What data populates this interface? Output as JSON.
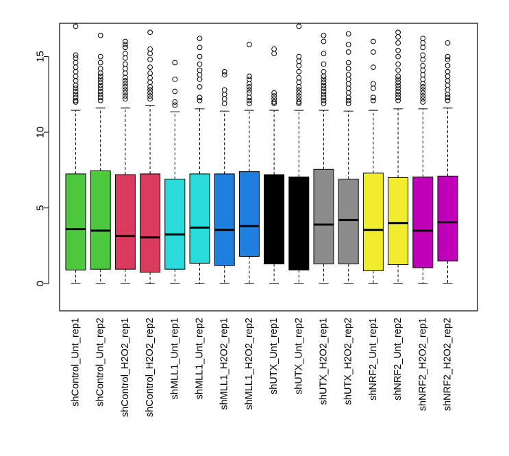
{
  "chart_data": {
    "type": "boxplot",
    "title": "",
    "xlabel": "",
    "ylabel": "",
    "ylim": [
      -1.8,
      17.2
    ],
    "yticks": [
      0,
      5,
      10,
      15
    ],
    "ytick_labels": [
      "0",
      "5",
      "10",
      "15"
    ],
    "grid": false,
    "legend": "none",
    "categories": [
      "shControl_Unt_rep1",
      "shControl_Unt_rep2",
      "shControl_H2O2_rep1",
      "shControl_H2O2_rep2",
      "shMLL1_Unt_rep1",
      "shMLL1_Unt_rep2",
      "shMLL1_H2O2_rep1",
      "shMLL1_H2O2_rep2",
      "shUTX_Unt_rep1",
      "shUTX_Unt_rep2",
      "shUTX_H2O2_rep1",
      "shUTX_H2O2_rep2",
      "shNRF2_Unt_rep1",
      "shNRF2_Unt_rep2",
      "shNRF2_H2O2_rep1",
      "shNRF2_H2O2_rep2"
    ],
    "colors": [
      "#4ec93f",
      "#4ec93f",
      "#d83b5b",
      "#d83b5b",
      "#2bdada",
      "#2bdada",
      "#1f7fdf",
      "#1f7fdf",
      "#000000",
      "#000000",
      "#8c8c8c",
      "#8c8c8c",
      "#f2ec2e",
      "#f2ec2e",
      "#c000b8",
      "#c000b8"
    ],
    "boxes": [
      {
        "min": 0,
        "q1": 0.9,
        "median": 3.6,
        "q3": 7.25,
        "max": 11.45,
        "outliers": [
          12.0,
          12.1,
          12.3,
          12.5,
          12.7,
          12.9,
          13.1,
          13.4,
          13.7,
          14.0,
          14.3,
          14.6,
          14.9,
          15.1,
          17.0
        ]
      },
      {
        "min": 0,
        "q1": 0.95,
        "median": 3.5,
        "q3": 7.45,
        "max": 11.6,
        "outliers": [
          12.1,
          12.3,
          12.5,
          12.7,
          12.9,
          13.1,
          13.3,
          13.5,
          13.7,
          13.9,
          14.2,
          14.6,
          15.0,
          16.4
        ]
      },
      {
        "min": 0,
        "q1": 0.95,
        "median": 3.15,
        "q3": 7.2,
        "max": 11.6,
        "outliers": [
          12.2,
          12.4,
          12.6,
          12.8,
          13.0,
          13.2,
          13.4,
          13.6,
          13.9,
          14.2,
          14.5,
          14.9,
          15.2,
          15.6,
          15.8,
          16.0
        ]
      },
      {
        "min": 0,
        "q1": 0.75,
        "median": 3.05,
        "q3": 7.25,
        "max": 11.75,
        "outliers": [
          12.2,
          12.4,
          12.6,
          12.8,
          13.0,
          13.3,
          13.6,
          13.9,
          14.3,
          14.8,
          15.2,
          15.5,
          16.6
        ]
      },
      {
        "min": 0,
        "q1": 0.95,
        "median": 3.25,
        "q3": 6.9,
        "max": 11.35,
        "outliers": [
          11.8,
          12.0,
          12.7,
          13.5,
          14.6
        ]
      },
      {
        "min": 0,
        "q1": 1.35,
        "median": 3.7,
        "q3": 7.25,
        "max": 11.55,
        "outliers": [
          12.1,
          12.3,
          13.0,
          13.5,
          13.8,
          14.1,
          14.5,
          15.0,
          15.6,
          16.2
        ]
      },
      {
        "min": 0,
        "q1": 1.2,
        "median": 3.55,
        "q3": 7.25,
        "max": 11.4,
        "outliers": [
          11.9,
          12.2,
          12.5,
          12.8,
          13.8,
          14.0
        ]
      },
      {
        "min": 0,
        "q1": 1.8,
        "median": 3.8,
        "q3": 7.4,
        "max": 11.45,
        "outliers": [
          11.9,
          12.1,
          12.3,
          12.6,
          12.8,
          13.0,
          13.2,
          13.5,
          13.7,
          15.8
        ]
      },
      {
        "min": 0,
        "q1": 1.3,
        "median": 3.55,
        "q3": 7.2,
        "max": 11.45,
        "outliers": [
          11.9,
          12.0,
          12.2,
          12.4,
          12.6,
          15.2,
          15.5
        ]
      },
      {
        "min": 0,
        "q1": 0.9,
        "median": 3.55,
        "q3": 7.05,
        "max": 11.45,
        "outliers": [
          11.9,
          12.0,
          12.2,
          12.4,
          12.6,
          12.8,
          13.0,
          13.3,
          13.6,
          14.0,
          14.4,
          14.7,
          15.0,
          17.0
        ]
      },
      {
        "min": 0,
        "q1": 1.3,
        "median": 3.9,
        "q3": 7.55,
        "max": 11.45,
        "outliers": [
          11.9,
          12.1,
          12.3,
          12.5,
          12.7,
          12.9,
          13.1,
          13.3,
          13.5,
          13.7,
          14.0,
          14.5,
          15.2,
          16.0,
          16.4
        ]
      },
      {
        "min": 0,
        "q1": 1.3,
        "median": 4.2,
        "q3": 6.9,
        "max": 11.4,
        "outliers": [
          11.9,
          12.1,
          12.3,
          12.6,
          12.9,
          13.2,
          13.5,
          13.8,
          14.2,
          14.6,
          15.3,
          15.8,
          16.5
        ]
      },
      {
        "min": 0,
        "q1": 0.85,
        "median": 3.55,
        "q3": 7.3,
        "max": 11.45,
        "outliers": [
          12.1,
          12.3,
          12.9,
          13.2,
          14.3,
          15.3,
          16.0
        ]
      },
      {
        "min": 0,
        "q1": 1.25,
        "median": 4.0,
        "q3": 7.0,
        "max": 11.55,
        "outliers": [
          12.1,
          12.3,
          12.5,
          12.7,
          12.9,
          13.1,
          13.3,
          13.5,
          13.7,
          14.1,
          14.5,
          15.0,
          15.4,
          15.9,
          16.3,
          16.6
        ]
      },
      {
        "min": 0,
        "q1": 1.05,
        "median": 3.5,
        "q3": 7.05,
        "max": 11.55,
        "outliers": [
          12.0,
          12.2,
          12.4,
          12.6,
          12.8,
          13.0,
          13.2,
          13.5,
          13.8,
          14.1,
          14.4,
          14.8,
          15.1,
          15.6,
          15.9,
          16.2
        ]
      },
      {
        "min": 0,
        "q1": 1.5,
        "median": 4.05,
        "q3": 7.1,
        "max": 11.6,
        "outliers": [
          12.1,
          12.3,
          12.5,
          12.8,
          13.1,
          13.4,
          13.7,
          14.0,
          14.4,
          14.8,
          15.0,
          15.9
        ]
      }
    ]
  }
}
